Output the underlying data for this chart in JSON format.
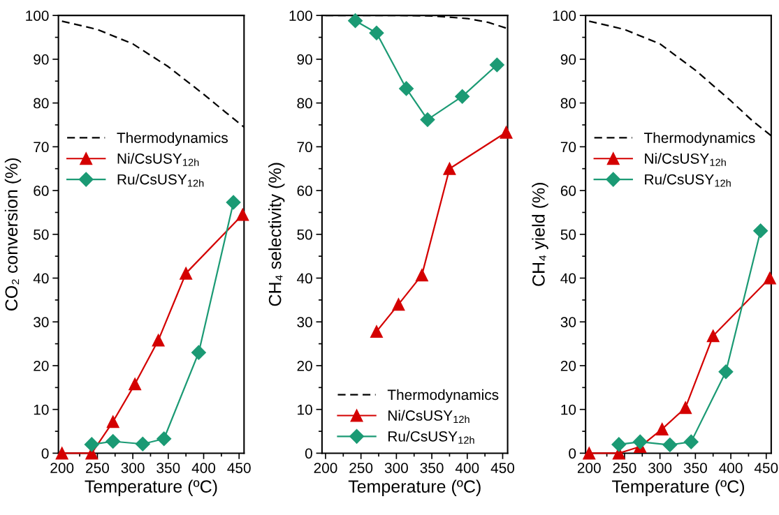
{
  "chart_data": [
    {
      "type": "line",
      "xlabel": "Temperature (ºC)",
      "ylabel": "CO₂ conversion (%)",
      "xlim": [
        195,
        457
      ],
      "xticks": [
        200,
        250,
        300,
        350,
        400,
        450
      ],
      "ylim": [
        0,
        100
      ],
      "yticks": [
        0,
        10,
        20,
        30,
        40,
        50,
        60,
        70,
        80,
        90,
        100
      ],
      "grid": false,
      "legend": "center left",
      "series": [
        {
          "name": "Thermodynamics",
          "color": "#000000",
          "line_style": "dashed",
          "marker": "none",
          "x": [
            200,
            250,
            300,
            350,
            400,
            430,
            457
          ],
          "values": [
            98.7,
            96.8,
            93.5,
            88.3,
            82,
            78,
            74.5
          ]
        },
        {
          "name": "Ni/CsUSY$_{12h}$",
          "color": "#d40000",
          "line_style": "solid",
          "marker": "triangle",
          "x": [
            200,
            242,
            272,
            303,
            336,
            375,
            455
          ],
          "values": [
            0,
            0,
            7.2,
            15.8,
            25.8,
            41.1,
            54.5
          ]
        },
        {
          "name": "Ru/CsUSY$_{12h}$",
          "color": "#1b9a74",
          "line_style": "solid",
          "marker": "diamond",
          "x": [
            242,
            272,
            314,
            344,
            393,
            442
          ],
          "values": [
            2,
            2.7,
            2.1,
            3.3,
            23,
            57.3
          ]
        }
      ]
    },
    {
      "type": "line",
      "xlabel": "Temperature (ºC)",
      "ylabel": "CH₄ selectivity (%)",
      "xlim": [
        195,
        457
      ],
      "xticks": [
        200,
        250,
        300,
        350,
        400,
        450
      ],
      "ylim": [
        0,
        100
      ],
      "yticks": [
        0,
        10,
        20,
        30,
        40,
        50,
        60,
        70,
        80,
        90,
        100
      ],
      "grid": false,
      "legend": "lower right",
      "series": [
        {
          "name": "Thermodynamics",
          "color": "#000000",
          "line_style": "dashed",
          "marker": "none",
          "x": [
            200,
            300,
            350,
            400,
            430,
            457
          ],
          "values": [
            100,
            100,
            99.9,
            99.3,
            98.4,
            97
          ]
        },
        {
          "name": "Ni/CsUSY$_{12h}$",
          "color": "#d40000",
          "line_style": "solid",
          "marker": "triangle",
          "x": [
            272,
            303,
            336,
            375,
            455
          ],
          "values": [
            27.8,
            34,
            40.7,
            65,
            73.3
          ]
        },
        {
          "name": "Ru/CsUSY$_{12h}$",
          "color": "#1b9a74",
          "line_style": "solid",
          "marker": "diamond",
          "x": [
            242,
            272,
            314,
            344,
            393,
            442
          ],
          "values": [
            98.8,
            96,
            83.3,
            76.2,
            81.5,
            88.7
          ]
        }
      ]
    },
    {
      "type": "line",
      "xlabel": "Temperature (ºC)",
      "ylabel": "CH₄ yield (%)",
      "xlim": [
        195,
        457
      ],
      "xticks": [
        200,
        250,
        300,
        350,
        400,
        450
      ],
      "ylim": [
        0,
        100
      ],
      "yticks": [
        0,
        10,
        20,
        30,
        40,
        50,
        60,
        70,
        80,
        90,
        100
      ],
      "grid": false,
      "legend": "center left",
      "series": [
        {
          "name": "Thermodynamics",
          "color": "#000000",
          "line_style": "dashed",
          "marker": "none",
          "x": [
            200,
            250,
            300,
            350,
            400,
            430,
            457
          ],
          "values": [
            98.7,
            96.8,
            93.5,
            87.5,
            80.5,
            76,
            72.5
          ]
        },
        {
          "name": "Ni/CsUSY$_{12h}$",
          "color": "#d40000",
          "line_style": "solid",
          "marker": "triangle",
          "x": [
            200,
            242,
            272,
            303,
            336,
            375,
            455
          ],
          "values": [
            0,
            0,
            1.5,
            5.5,
            10.4,
            26.8,
            40
          ]
        },
        {
          "name": "Ru/CsUSY$_{12h}$",
          "color": "#1b9a74",
          "line_style": "solid",
          "marker": "diamond",
          "x": [
            242,
            272,
            314,
            344,
            393,
            442
          ],
          "values": [
            2,
            2.6,
            1.9,
            2.6,
            18.6,
            50.8
          ]
        }
      ]
    }
  ]
}
